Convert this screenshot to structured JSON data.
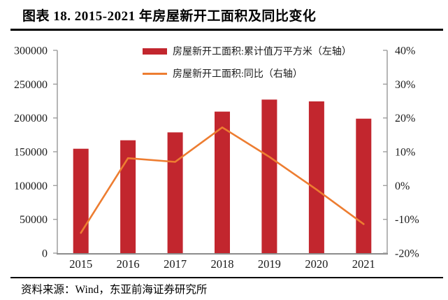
{
  "header": {
    "title": "图表 18. 2015-2021 年房屋新开工面积及同比变化"
  },
  "footer": {
    "source": "资料来源：Wind，东亚前海证券研究所"
  },
  "colors": {
    "bar": "#C2262E",
    "line": "#ED7D31",
    "axis_line": "#9E9E9E",
    "tick_text": "#1A1A1A"
  },
  "chart_data": {
    "type": "bar",
    "subtype": "bar-and-line-dual-axis",
    "title": "图表 18. 2015-2021 年房屋新开工面积及同比变化",
    "categories": [
      "2015",
      "2016",
      "2017",
      "2018",
      "2019",
      "2020",
      "2021"
    ],
    "series": [
      {
        "name": "房屋新开工面积:累计值万平方米（左轴）",
        "type": "bar",
        "axis": "left",
        "color": "#C2262E",
        "values": [
          154454,
          166928,
          178654,
          209342,
          227154,
          224433,
          198895
        ]
      },
      {
        "name": "房屋新开工面积:同比（右轴）",
        "type": "line",
        "axis": "right",
        "color": "#ED7D31",
        "values": [
          -14.0,
          8.1,
          7.0,
          17.2,
          8.5,
          -1.2,
          -11.4
        ]
      }
    ],
    "left_axis": {
      "min": 0,
      "max": 300000,
      "step": 50000,
      "labels": [
        "0",
        "50000",
        "100000",
        "150000",
        "200000",
        "250000",
        "300000"
      ]
    },
    "right_axis": {
      "min": -20,
      "max": 40,
      "step": 10,
      "labels": [
        "-20%",
        "-10%",
        "0%",
        "10%",
        "20%",
        "30%",
        "40%"
      ]
    },
    "legend_position": "top-center",
    "grid": false
  }
}
